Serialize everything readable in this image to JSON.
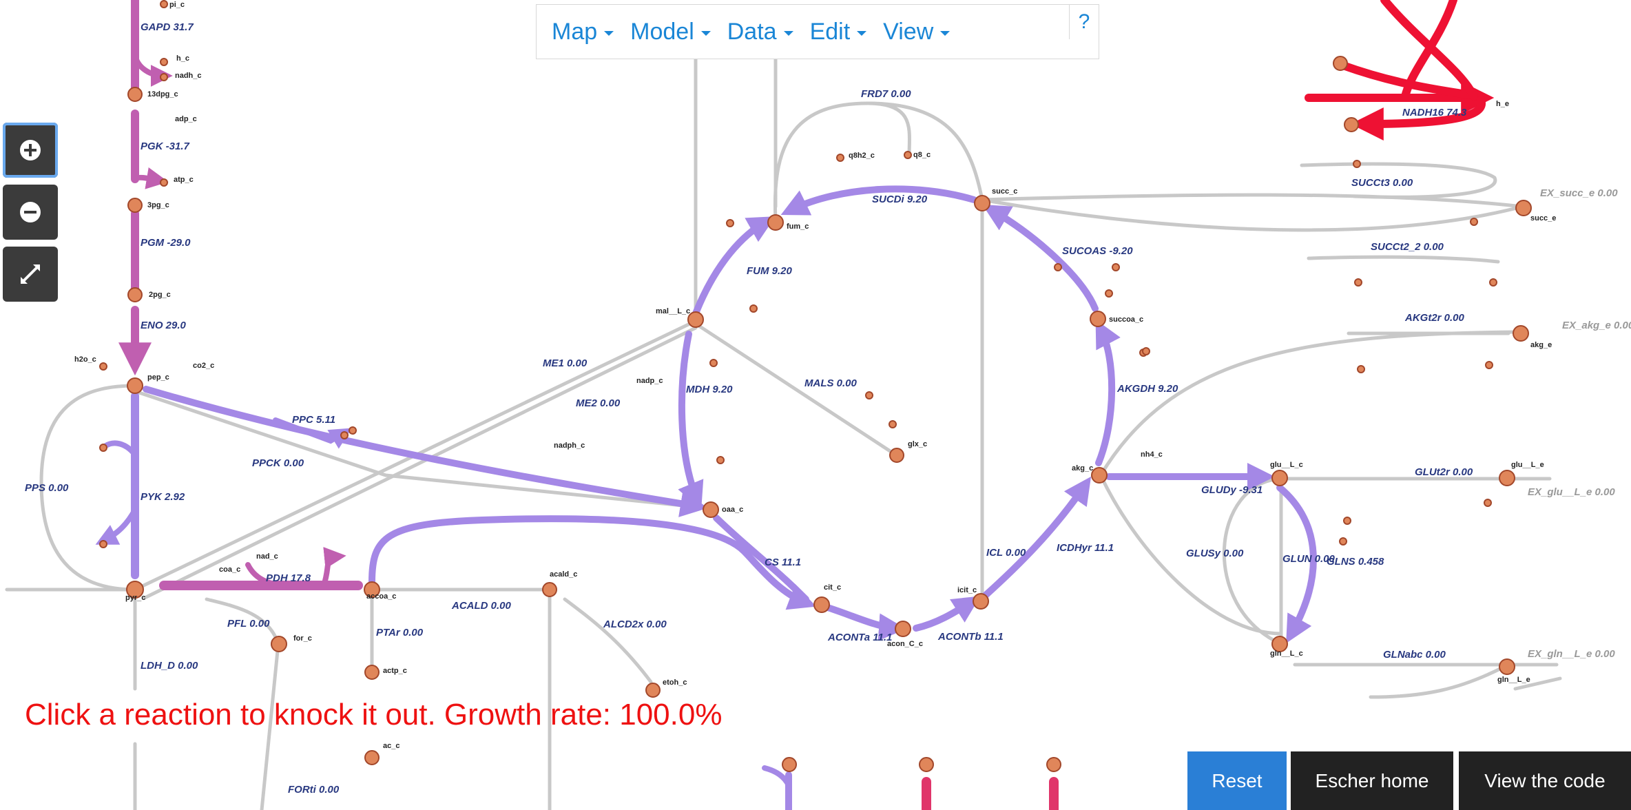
{
  "menu": {
    "items": [
      "Map",
      "Model",
      "Data",
      "Edit",
      "View"
    ],
    "help_label": "?"
  },
  "zoom": {
    "zoom_in_icon": "plus-circle-icon",
    "zoom_out_icon": "minus-circle-icon",
    "fullscreen_icon": "expand-icon"
  },
  "status_text": "Click a reaction to knock it out. Growth rate: 100.0%",
  "buttons": {
    "reset": "Reset",
    "escher_home": "Escher home",
    "view_code": "View the code"
  },
  "colors": {
    "status_red": "#ee1111",
    "accent_blue": "#1a86d6",
    "reset_bg": "#2a7fd6",
    "dark_button_bg": "#222222",
    "flux_purple": "#a488e6",
    "flux_magenta": "#c05fb0",
    "flux_red": "#ee1133",
    "inactive_gray": "#c8c8c8"
  },
  "reactions": [
    {
      "id": "rxn-gapd",
      "label": "GAPD 31.7"
    },
    {
      "id": "rxn-pgk",
      "label": "PGK -31.7"
    },
    {
      "id": "rxn-pgm",
      "label": "PGM -29.0"
    },
    {
      "id": "rxn-eno",
      "label": "ENO 29.0"
    },
    {
      "id": "rxn-pps",
      "label": "PPS 0.00"
    },
    {
      "id": "rxn-pyk",
      "label": "PYK 2.92"
    },
    {
      "id": "rxn-ppc",
      "label": "PPC 5.11"
    },
    {
      "id": "rxn-ppck",
      "label": "PPCK 0.00"
    },
    {
      "id": "rxn-pdh",
      "label": "PDH 17.8"
    },
    {
      "id": "rxn-pfl",
      "label": "PFL 0.00"
    },
    {
      "id": "rxn-ldh",
      "label": "LDH_D 0.00"
    },
    {
      "id": "rxn-me1",
      "label": "ME1 0.00"
    },
    {
      "id": "rxn-me2",
      "label": "ME2 0.00"
    },
    {
      "id": "rxn-ptar",
      "label": "PTAr 0.00"
    },
    {
      "id": "rxn-acald",
      "label": "ACALD 0.00"
    },
    {
      "id": "rxn-alcd2x",
      "label": "ALCD2x 0.00"
    },
    {
      "id": "rxn-fumr",
      "label": "FUM 9.20"
    },
    {
      "id": "rxn-mdh",
      "label": "MDH 9.20"
    },
    {
      "id": "rxn-mals",
      "label": "MALS 0.00"
    },
    {
      "id": "rxn-frd7",
      "label": "FRD7 0.00"
    },
    {
      "id": "rxn-sucdi",
      "label": "SUCDi 9.20"
    },
    {
      "id": "rxn-cs",
      "label": "CS 11.1"
    },
    {
      "id": "rxn-aconta",
      "label": "ACONTa 11.1"
    },
    {
      "id": "rxn-acontb",
      "label": "ACONTb 11.1"
    },
    {
      "id": "rxn-icl",
      "label": "ICL 0.00"
    },
    {
      "id": "rxn-icdhyr",
      "label": "ICDHyr 11.1"
    },
    {
      "id": "rxn-akgdh",
      "label": "AKGDH 9.20"
    },
    {
      "id": "rxn-sucoas",
      "label": "SUCOAS -9.20"
    },
    {
      "id": "rxn-nadh16",
      "label": "NADH16 74.3"
    },
    {
      "id": "rxn-succt3",
      "label": "SUCCt3 0.00"
    },
    {
      "id": "rxn-succt2",
      "label": "SUCCt2_2 0.00"
    },
    {
      "id": "rxn-akgt2r",
      "label": "AKGt2r 0.00"
    },
    {
      "id": "rxn-gludy",
      "label": "GLUDy -9.31"
    },
    {
      "id": "rxn-glut2r",
      "label": "GLUt2r 0.00"
    },
    {
      "id": "rxn-glusy",
      "label": "GLUSy 0.00"
    },
    {
      "id": "rxn-glun",
      "label": "GLUN 0.00"
    },
    {
      "id": "rxn-glns",
      "label": "GLNS 0.458"
    },
    {
      "id": "rxn-glnabc",
      "label": "GLNabc 0.00"
    },
    {
      "id": "rxn-forti",
      "label": "FORti 0.00"
    }
  ],
  "exchanges": [
    {
      "id": "ex-succ",
      "label": "EX_succ_e 0.00"
    },
    {
      "id": "ex-akg",
      "label": "EX_akg_e 0.00"
    },
    {
      "id": "ex-glu",
      "label": "EX_glu__L_e 0.00"
    },
    {
      "id": "ex-gln",
      "label": "EX_gln__L_e 0.00"
    }
  ],
  "metabolites": [
    "pi_c",
    "h_c",
    "nadh_c",
    "13dpg_c",
    "adp_c",
    "atp_c",
    "3pg_c",
    "2pg_c",
    "h2o_c",
    "pep_c",
    "co2_c",
    "pyr_c",
    "nad_c",
    "coa_c",
    "accoa_c",
    "for_c",
    "actp_c",
    "acald_c",
    "etoh_c",
    "nadph_c",
    "nadp_c",
    "mal__L_c",
    "fum_c",
    "oaa_c",
    "q8h2_c",
    "q8_c",
    "succ_c",
    "glx_c",
    "cit_c",
    "acon_C_c",
    "icit_c",
    "akg_c",
    "succoa_c",
    "glu__L_c",
    "gln__L_c",
    "nh4_c",
    "h_e",
    "succ_e",
    "akg_e",
    "glu__L_e",
    "gln__L_e",
    "ac_c"
  ]
}
